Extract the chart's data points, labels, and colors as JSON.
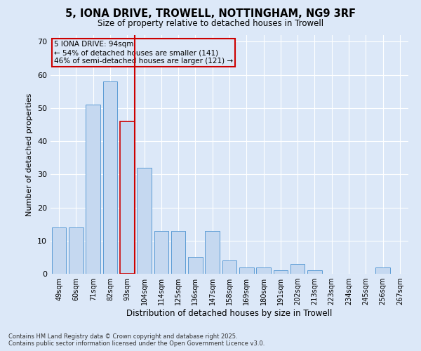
{
  "title_line1": "5, IONA DRIVE, TROWELL, NOTTINGHAM, NG9 3RF",
  "title_line2": "Size of property relative to detached houses in Trowell",
  "xlabel": "Distribution of detached houses by size in Trowell",
  "ylabel": "Number of detached properties",
  "categories": [
    "49sqm",
    "60sqm",
    "71sqm",
    "82sqm",
    "93sqm",
    "104sqm",
    "114sqm",
    "125sqm",
    "136sqm",
    "147sqm",
    "158sqm",
    "169sqm",
    "180sqm",
    "191sqm",
    "202sqm",
    "213sqm",
    "223sqm",
    "234sqm",
    "245sqm",
    "256sqm",
    "267sqm"
  ],
  "values": [
    14,
    14,
    51,
    58,
    46,
    32,
    13,
    13,
    5,
    13,
    4,
    2,
    2,
    1,
    3,
    1,
    0,
    0,
    0,
    2,
    0
  ],
  "bar_color": "#c5d8f0",
  "bar_edge_color": "#5b9bd5",
  "highlight_index": 4,
  "highlight_line_color": "#cc0000",
  "annotation_line1": "5 IONA DRIVE: 94sqm",
  "annotation_line2": "← 54% of detached houses are smaller (141)",
  "annotation_line3": "46% of semi-detached houses are larger (121) →",
  "annotation_box_color": "#cc0000",
  "background_color": "#dce8f8",
  "grid_color": "#ffffff",
  "footer_text": "Contains HM Land Registry data © Crown copyright and database right 2025.\nContains public sector information licensed under the Open Government Licence v3.0.",
  "ylim": [
    0,
    72
  ],
  "yticks": [
    0,
    10,
    20,
    30,
    40,
    50,
    60,
    70
  ]
}
